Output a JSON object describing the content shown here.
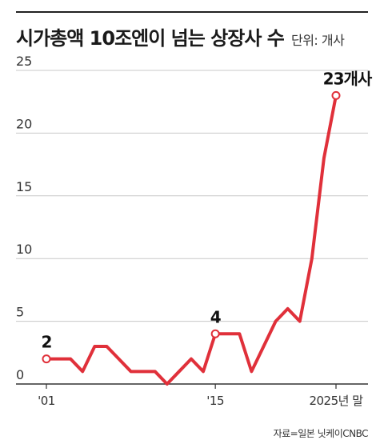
{
  "chart_data": {
    "type": "line",
    "title": "시가총액 10조엔이 넘는 상장사 수",
    "unit_label": "단위: 개사",
    "x": [
      2001,
      2002,
      2003,
      2004,
      2005,
      2006,
      2007,
      2008,
      2009,
      2010,
      2011,
      2012,
      2013,
      2014,
      2015,
      2016,
      2017,
      2018,
      2019,
      2020,
      2021,
      2022,
      2023,
      2024,
      2025
    ],
    "series": [
      {
        "values": [
          2,
          2,
          2,
          1,
          3,
          3,
          2,
          1,
          1,
          1,
          0,
          1,
          2,
          1,
          4,
          4,
          4,
          1,
          3,
          5,
          6,
          5,
          10,
          18,
          23
        ]
      }
    ],
    "ylim": [
      0,
      25
    ],
    "y_ticks": [
      "0",
      "5",
      "10",
      "15",
      "20",
      "25"
    ],
    "x_ticks": [
      {
        "x": 2001,
        "label": "'01"
      },
      {
        "x": 2015,
        "label": "'15"
      },
      {
        "x": 2025,
        "label": "2025년 말"
      }
    ],
    "annotations": [
      {
        "x": 2001,
        "y": 2,
        "label": "2"
      },
      {
        "x": 2015,
        "y": 4,
        "label": "4"
      },
      {
        "x": 2025,
        "y": 23,
        "label": "23개사"
      }
    ],
    "grid": true,
    "line_color": "#e0303a",
    "source": "자료=일본 닛케이CNBC"
  }
}
